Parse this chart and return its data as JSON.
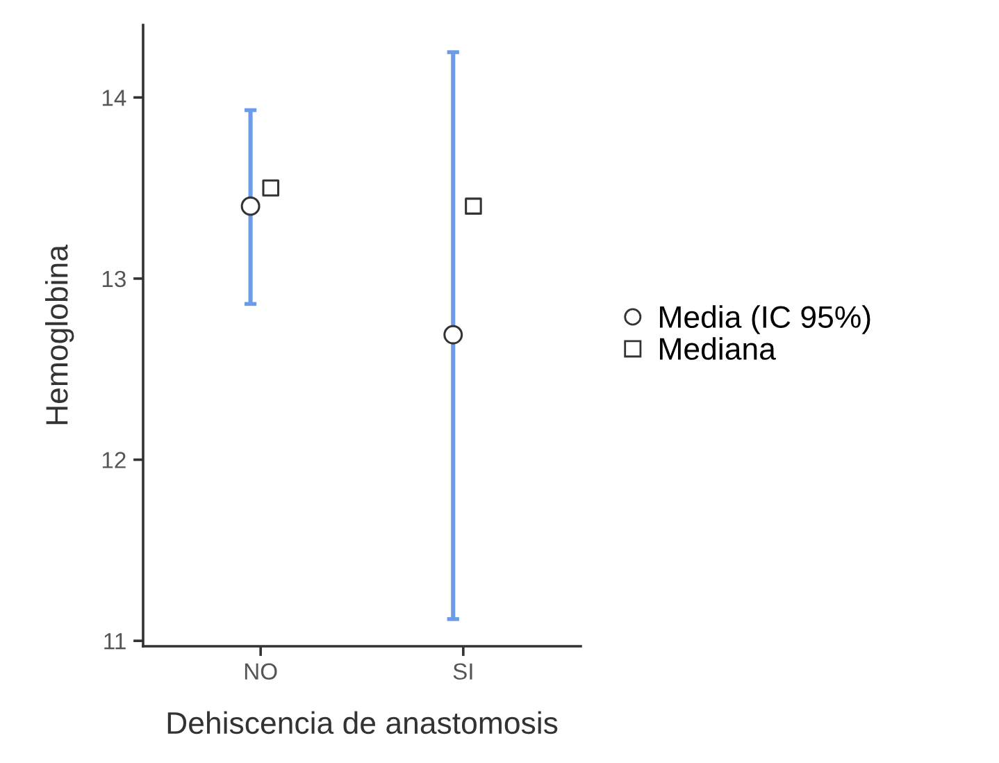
{
  "chart_data": {
    "type": "scatter",
    "xlabel": "Dehiscencia de anastomosis",
    "ylabel": "Hemoglobina",
    "categories": [
      "NO",
      "SI"
    ],
    "series": [
      {
        "name": "Media (IC 95%)",
        "color": "#333333",
        "marker": "circle",
        "values": [
          13.4,
          12.69
        ],
        "errors": [
          [
            12.86,
            13.93
          ],
          [
            11.12,
            14.25
          ]
        ]
      },
      {
        "name": "Mediana",
        "color": "#333333",
        "marker": "square",
        "values": [
          13.5,
          13.4
        ]
      }
    ],
    "ylim": [
      10.97,
      14.4
    ],
    "yticks": [
      11,
      12,
      13,
      14
    ],
    "grid": false,
    "legend": "right"
  }
}
